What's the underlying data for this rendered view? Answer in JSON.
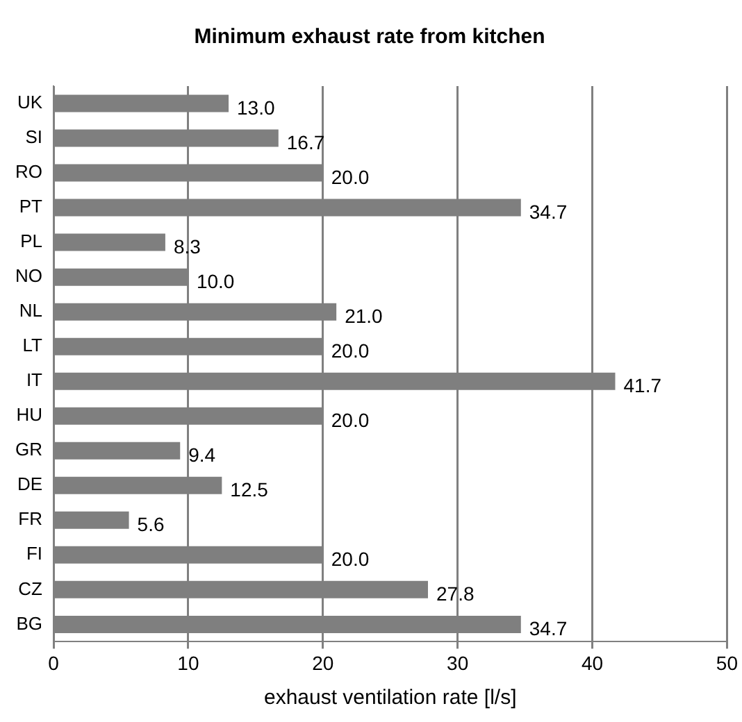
{
  "chart_data": {
    "type": "bar",
    "orientation": "horizontal",
    "title": "Minimum exhaust rate from kitchen",
    "xlabel": "exhaust ventilation rate [l/s]",
    "categories": [
      "UK",
      "SI",
      "RO",
      "PT",
      "PL",
      "NO",
      "NL",
      "LT",
      "IT",
      "HU",
      "GR",
      "DE",
      "FR",
      "FI",
      "CZ",
      "BG"
    ],
    "values": [
      13.0,
      16.7,
      20.0,
      34.7,
      8.3,
      10.0,
      21.0,
      20.0,
      41.7,
      20.0,
      9.4,
      12.5,
      5.6,
      20.0,
      27.8,
      34.7
    ],
    "value_labels": [
      "13.0",
      "16.7",
      "20.0",
      "34.7",
      "8.3",
      "10.0",
      "21.0",
      "20.0",
      "41.7",
      "20.0",
      "9.4",
      "12.5",
      "5.6",
      "20.0",
      "27.8",
      "34.7"
    ],
    "color": "#7f7f7f",
    "xlim": [
      0,
      50
    ],
    "xticks": [
      0,
      10,
      20,
      30,
      40,
      50
    ],
    "grid": "x",
    "legend": false
  }
}
